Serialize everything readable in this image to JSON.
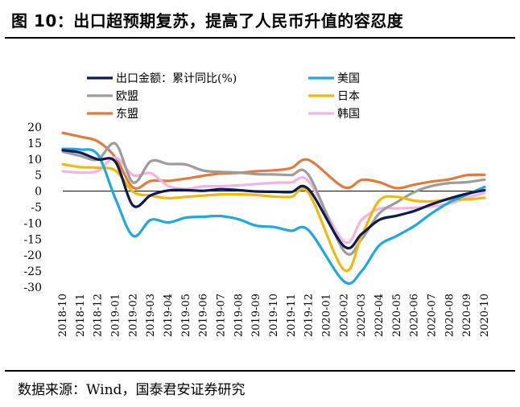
{
  "title": "图 10：出口超预期复苏，提高了人民币升值的容忍度",
  "source": "数据来源：Wind，国泰君安证券研究",
  "chart_data": {
    "type": "line",
    "categories": [
      "2018-10",
      "2018-11",
      "2018-12",
      "2019-01",
      "2019-02",
      "2019-03",
      "2019-04",
      "2019-05",
      "2019-06",
      "2019-07",
      "2019-08",
      "2019-09",
      "2019-10",
      "2019-11",
      "2019-12",
      "2020-01",
      "2020-02",
      "2020-03",
      "2020-04",
      "2020-05",
      "2020-06",
      "2020-07",
      "2020-08",
      "2020-09",
      "2020-10"
    ],
    "yticks": [
      20,
      15,
      10,
      5,
      0,
      -5,
      -10,
      -15,
      -20,
      -25,
      -30
    ],
    "ylim": [
      -30,
      20
    ],
    "legend_position": "top",
    "series": [
      {
        "name": "出口金额：累计同比(%)",
        "color": "#0b1a4f",
        "values": [
          12.8,
          12.0,
          9.9,
          9.1,
          -4.5,
          -1.3,
          0.2,
          0.3,
          0.1,
          0.6,
          0.3,
          -0.1,
          -0.2,
          -0.3,
          0.5,
          null,
          -17.2,
          -13.4,
          -9.0,
          -7.7,
          -6.2,
          -4.1,
          -2.3,
          -0.8,
          0.3
        ]
      },
      {
        "name": "美国",
        "color": "#1fa8e0",
        "values": [
          13.2,
          13.0,
          11.3,
          -2.4,
          -14.0,
          -9.0,
          -9.8,
          -8.3,
          -8.0,
          -7.8,
          -8.8,
          -10.8,
          -11.2,
          -12.4,
          -12.3,
          null,
          -28.2,
          -25.0,
          -17.0,
          -14.0,
          -10.9,
          -6.9,
          -3.5,
          -1.1,
          1.3
        ]
      },
      {
        "name": "欧盟",
        "color": "#9c9c9c",
        "values": [
          12.3,
          11.0,
          9.9,
          14.8,
          2.7,
          9.3,
          8.5,
          8.3,
          6.4,
          6.0,
          5.8,
          5.3,
          5.2,
          5.0,
          4.9,
          null,
          -18.7,
          -15.0,
          -7.0,
          -3.5,
          -0.3,
          1.6,
          2.5,
          2.8,
          3.6
        ]
      },
      {
        "name": "日本",
        "color": "#f2b80b",
        "values": [
          8.4,
          7.5,
          7.3,
          6.4,
          -0.2,
          -1.4,
          -2.2,
          -1.8,
          -1.4,
          -1.0,
          -1.0,
          -1.2,
          -1.7,
          -1.8,
          -0.7,
          null,
          -24.6,
          -14.0,
          -3.0,
          -1.8,
          -3.0,
          -3.2,
          -2.6,
          -2.6,
          -2.1
        ]
      },
      {
        "name": "东盟",
        "color": "#e07b39",
        "values": [
          18.2,
          17.0,
          15.5,
          10.5,
          1.1,
          3.2,
          3.2,
          3.9,
          4.8,
          5.5,
          5.7,
          6.2,
          6.5,
          7.2,
          9.7,
          null,
          1.2,
          3.5,
          2.8,
          0.9,
          2.0,
          3.0,
          3.7,
          5.0,
          5.1
        ]
      },
      {
        "name": "韩国",
        "color": "#f5b3e2",
        "values": [
          6.2,
          5.8,
          6.3,
          10.5,
          5.0,
          5.6,
          1.6,
          0.7,
          1.5,
          1.5,
          1.8,
          2.2,
          2.6,
          2.7,
          3.0,
          null,
          -15.8,
          -9.0,
          -5.5,
          -5.4,
          -5.2,
          -4.8,
          -3.9,
          -2.1,
          -0.6
        ]
      }
    ]
  }
}
